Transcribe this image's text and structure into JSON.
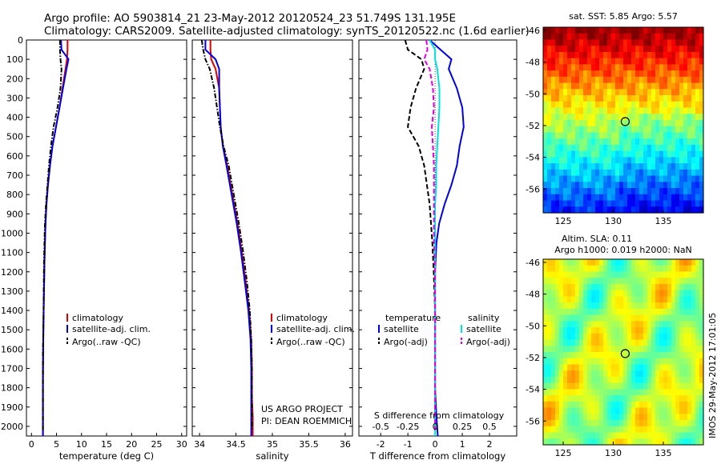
{
  "header": {
    "line1": "Argo profile: AO 5903814_21 23-May-2012 20120524_23 51.749S 131.195E",
    "line2": "Climatology: CARS2009. Satellite-adjusted climatology: synTS_20120522.nc (1.6d earlier)"
  },
  "colors": {
    "climatology": "#e00000",
    "satellite": "#0000e6",
    "argo": "#000000",
    "salinity_sat": "#00e0e0",
    "salinity_argo": "#e000e0"
  },
  "chart_data": [
    {
      "type": "line",
      "xlabel": "temperature (deg C)",
      "ylabel": "",
      "xlim": [
        -1,
        31
      ],
      "ylim": [
        2050,
        0
      ],
      "xticks": [
        0,
        5,
        10,
        15,
        20,
        25,
        30
      ],
      "yticks": [
        0,
        100,
        200,
        300,
        400,
        500,
        600,
        700,
        800,
        900,
        1000,
        1100,
        1200,
        1300,
        1400,
        1500,
        1600,
        1700,
        1800,
        1900,
        2000
      ],
      "legend_position": "lower-center",
      "series": [
        {
          "name": "climatology",
          "style": "solid",
          "color": "#e00000",
          "x": [
            7.2,
            7.2,
            7.1,
            6.8,
            6.2,
            5.6,
            4.9,
            4.2,
            3.7,
            3.3,
            3.0,
            2.8,
            2.7,
            2.6,
            2.5,
            2.4,
            2.35,
            2.3,
            2.3,
            2.3
          ],
          "depth": [
            0,
            50,
            100,
            150,
            250,
            350,
            450,
            550,
            650,
            750,
            850,
            950,
            1050,
            1150,
            1300,
            1450,
            1600,
            1750,
            1900,
            2050
          ]
        },
        {
          "name": "satellite-adj. clim.",
          "style": "solid",
          "color": "#0000e6",
          "x": [
            5.9,
            6.0,
            7.4,
            7.0,
            6.3,
            5.6,
            4.9,
            4.2,
            3.7,
            3.3,
            3.0,
            2.8,
            2.7,
            2.6,
            2.5,
            2.4,
            2.35,
            2.3,
            2.3,
            2.3
          ],
          "depth": [
            0,
            50,
            100,
            150,
            250,
            350,
            450,
            550,
            650,
            750,
            850,
            950,
            1050,
            1150,
            1300,
            1450,
            1600,
            1750,
            1900,
            2050
          ]
        },
        {
          "name": "Argo(..raw -QC)",
          "style": "dashdot",
          "color": "#000000",
          "x": [
            5.7,
            5.7,
            5.8,
            6.0,
            5.8,
            5.2,
            4.4,
            3.9,
            3.5,
            3.2,
            2.9,
            2.7,
            2.6,
            2.5,
            2.45,
            2.4,
            2.3,
            2.3,
            2.3,
            2.3
          ],
          "depth": [
            0,
            50,
            100,
            150,
            250,
            350,
            450,
            550,
            650,
            750,
            850,
            950,
            1050,
            1150,
            1300,
            1450,
            1600,
            1750,
            1900,
            2020
          ]
        }
      ]
    },
    {
      "type": "line",
      "xlabel": "salinity",
      "ylabel": "",
      "xlim": [
        33.9,
        36.1
      ],
      "ylim": [
        2050,
        0
      ],
      "xticks": [
        34,
        34.5,
        35,
        35.5,
        36
      ],
      "legend_position": "lower-center",
      "series": [
        {
          "name": "climatology",
          "style": "solid",
          "color": "#e00000",
          "x": [
            34.15,
            34.15,
            34.16,
            34.22,
            34.27,
            34.28,
            34.29,
            34.32,
            34.38,
            34.45,
            34.52,
            34.58,
            34.63,
            34.68,
            34.71,
            34.72,
            34.72,
            34.73,
            34.73
          ],
          "depth": [
            0,
            50,
            100,
            150,
            250,
            350,
            450,
            550,
            650,
            800,
            950,
            1100,
            1250,
            1400,
            1550,
            1700,
            1850,
            1950,
            2050
          ]
        },
        {
          "name": "satellite-adj. clim.",
          "style": "solid",
          "color": "#0000e6",
          "x": [
            34.08,
            34.08,
            34.22,
            34.27,
            34.27,
            34.28,
            34.29,
            34.32,
            34.37,
            34.44,
            34.51,
            34.57,
            34.62,
            34.67,
            34.7,
            34.71,
            34.71,
            34.71,
            34.71
          ],
          "depth": [
            0,
            50,
            100,
            150,
            250,
            350,
            450,
            550,
            650,
            800,
            950,
            1100,
            1250,
            1400,
            1550,
            1700,
            1850,
            1950,
            2050
          ]
        },
        {
          "name": "Argo(..raw -QC)",
          "style": "dashdot",
          "color": "#000000",
          "x": [
            34.03,
            34.05,
            34.08,
            34.14,
            34.2,
            34.24,
            34.28,
            34.33,
            34.4,
            34.47,
            34.54,
            34.6,
            34.65,
            34.69,
            34.71,
            34.72,
            34.72,
            34.72,
            34.72
          ],
          "depth": [
            0,
            50,
            100,
            150,
            250,
            350,
            450,
            550,
            650,
            800,
            950,
            1100,
            1250,
            1400,
            1550,
            1700,
            1850,
            1950,
            2020
          ]
        }
      ],
      "annotations": [
        "US ARGO PROJECT",
        "PI: DEAN ROEMMICH"
      ]
    },
    {
      "type": "line",
      "xlabel": "T difference from climatology",
      "xlabel2": "S difference from climatology",
      "xlim_T": [
        -2.8,
        3
      ],
      "xticks_T": [
        -2,
        -1,
        0,
        1,
        2
      ],
      "xlim_S": [
        -0.7,
        0.75
      ],
      "xticks_S": [
        -0.5,
        -0.25,
        0,
        0.25,
        0.5
      ],
      "ylim": [
        2050,
        0
      ],
      "legend_position": "lower-center",
      "legend_groups": [
        "temperature",
        "salinity"
      ],
      "series": [
        {
          "name": "satellite",
          "group": "temperature",
          "style": "solid",
          "color": "#0000e6",
          "x": [
            -0.2,
            0.2,
            0.6,
            0.5,
            0.8,
            1.0,
            1.05,
            0.9,
            0.8,
            0.6,
            0.35,
            0.15,
            0.05,
            0.0,
            0.0,
            0.0,
            0.0,
            0.05,
            0.1
          ],
          "depth": [
            0,
            50,
            100,
            150,
            250,
            350,
            450,
            550,
            650,
            750,
            850,
            950,
            1050,
            1200,
            1400,
            1600,
            1800,
            1950,
            2050
          ]
        },
        {
          "name": "Argo(-adj)",
          "group": "temperature",
          "style": "dashed",
          "color": "#000000",
          "x": [
            -1.1,
            -1.0,
            -0.5,
            -0.4,
            -0.7,
            -0.9,
            -1.0,
            -0.6,
            -0.4,
            -0.3,
            -0.2,
            -0.15,
            -0.1,
            -0.05,
            0.0,
            0.0,
            0.0,
            0.0,
            0.0
          ],
          "depth": [
            0,
            50,
            100,
            150,
            250,
            350,
            450,
            550,
            650,
            750,
            850,
            950,
            1050,
            1200,
            1400,
            1600,
            1800,
            1950,
            2020
          ]
        },
        {
          "name": "satellite",
          "group": "salinity",
          "style": "solid",
          "color": "#00e0e0",
          "x": [
            -0.05,
            0.0,
            0.0,
            0.02,
            0.04,
            0.04,
            0.03,
            0.02,
            0.01,
            0.01,
            0.0,
            0.0,
            0.0,
            0.0,
            0.0,
            0.0,
            0.0,
            0.0,
            0.0
          ],
          "depth": [
            0,
            50,
            100,
            150,
            250,
            350,
            450,
            550,
            650,
            750,
            850,
            950,
            1050,
            1200,
            1400,
            1600,
            1800,
            1950,
            2050
          ]
        },
        {
          "name": "Argo(-adj)",
          "group": "salinity",
          "style": "dashed",
          "color": "#e000e0",
          "x": [
            -0.08,
            -0.07,
            -0.1,
            -0.05,
            -0.02,
            -0.01,
            -0.03,
            -0.02,
            -0.01,
            -0.01,
            -0.01,
            -0.01,
            -0.01,
            0.0,
            0.0,
            0.0,
            0.0,
            0.0,
            0.0
          ],
          "depth": [
            0,
            50,
            100,
            150,
            250,
            350,
            450,
            550,
            650,
            750,
            850,
            950,
            1050,
            1200,
            1400,
            1600,
            1800,
            1950,
            2020
          ]
        }
      ]
    },
    {
      "type": "heatmap",
      "title": "sat. SST: 5.85  Argo: 5.57",
      "xlim": [
        123,
        139
      ],
      "ylim": [
        -57.5,
        -45.8
      ],
      "xticks": [
        125,
        130,
        135
      ],
      "yticks": [
        -46,
        -48,
        -50,
        -52,
        -54,
        -56
      ],
      "marker": {
        "lon": 131.195,
        "lat": -51.749
      },
      "colorscale": "jet-warm-north"
    },
    {
      "type": "heatmap",
      "title": "Altim. SLA: 0.11",
      "subtitle": "Argo h1000: 0.019  h2000: NaN",
      "xlim": [
        123,
        139
      ],
      "ylim": [
        -57.5,
        -45.8
      ],
      "xticks": [
        125,
        130,
        135
      ],
      "yticks": [
        -46,
        -48,
        -50,
        -52,
        -54,
        -56
      ],
      "marker": {
        "lon": 131.195,
        "lat": -51.749
      },
      "colorscale": "jet-mottled"
    }
  ],
  "side_label": "IMOS 29-May-2012 17:01:05"
}
